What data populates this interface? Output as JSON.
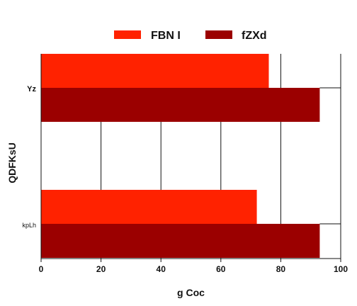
{
  "chart_data": {
    "type": "bar",
    "orientation": "horizontal",
    "categories": [
      "Yz",
      "kpLh"
    ],
    "series": [
      {
        "name": "FBN I",
        "color": "#ff2200",
        "values": [
          76,
          72
        ]
      },
      {
        "name": "fZXd",
        "color": "#9b0000",
        "values": [
          93,
          93
        ]
      }
    ],
    "xlabel": "g Coc",
    "ylabel": "QDFKsU",
    "xlim": [
      0,
      100
    ],
    "xticks": [
      0,
      20,
      40,
      60,
      80,
      100
    ],
    "grid": "vertical",
    "legend_position": "top-center"
  }
}
